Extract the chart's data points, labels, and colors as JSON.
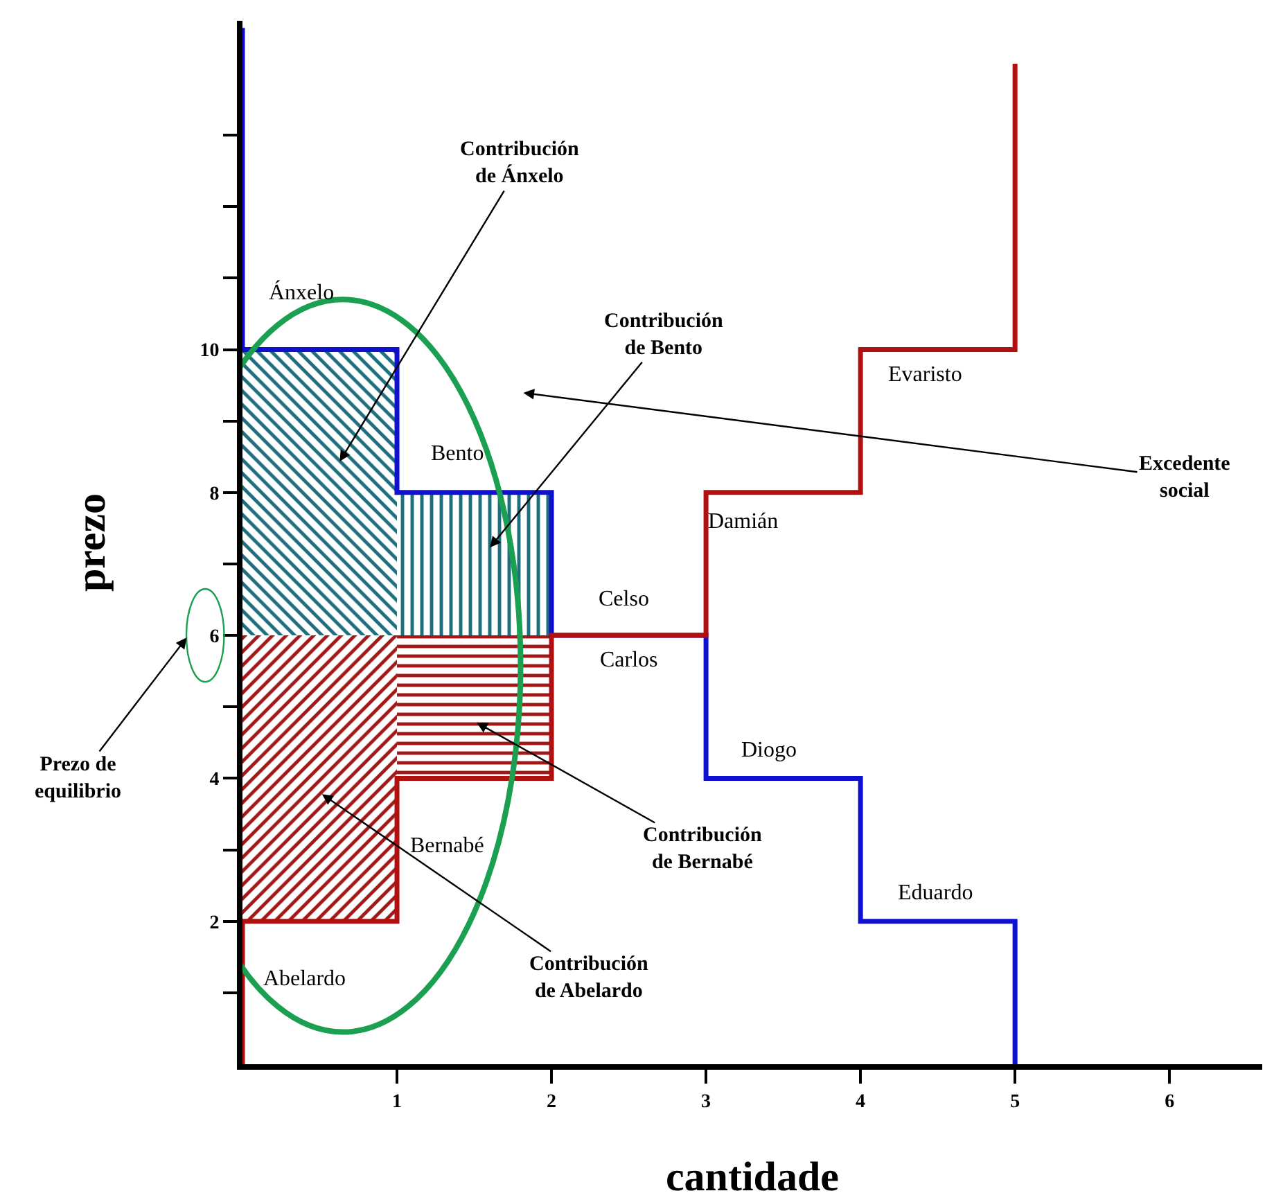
{
  "chart_data": {
    "type": "step",
    "xlabel": "cantidade",
    "ylabel": "prezo",
    "xlim": [
      0,
      6.6
    ],
    "ylim": [
      0,
      14.6
    ],
    "xticks": [
      1,
      2,
      3,
      4,
      5,
      6
    ],
    "yticks": [
      {
        "value": 1,
        "label": null
      },
      2,
      {
        "value": 3,
        "label": null
      },
      4,
      {
        "value": 5,
        "label": null
      },
      6,
      {
        "value": 7,
        "label": null
      },
      8,
      {
        "value": 9,
        "label": null
      },
      10,
      {
        "value": 11,
        "label": null
      },
      {
        "value": 12,
        "label": null
      },
      {
        "value": 13,
        "label": null
      }
    ],
    "series": [
      {
        "type": "bar",
        "color": "#1e6e7e",
        "x": [
          0.5,
          1.5
        ],
        "base": [
          6,
          6
        ],
        "values": [
          4,
          2
        ]
      },
      {
        "type": "bar",
        "color": "#a01818",
        "x": [
          0.5,
          1.5
        ],
        "base": [
          2,
          4
        ],
        "values": [
          4,
          2
        ]
      },
      {
        "color": "#1010d0",
        "x": [
          0,
          0,
          1,
          2,
          3,
          4,
          5
        ],
        "values": [
          14.5,
          10,
          8,
          6,
          4,
          2,
          0
        ]
      },
      {
        "color": "#b01010",
        "x": [
          0,
          0,
          1,
          2,
          3,
          4,
          5
        ],
        "values": [
          0,
          2,
          4,
          6,
          8,
          10,
          14
        ]
      }
    ],
    "annotations": [
      "Ánxelo",
      "Bento",
      "Celso",
      "Carlos",
      "Damián",
      "Diogo",
      "Evaristo",
      "Eduardo",
      "Bernabé",
      "Abelardo",
      "Contribución de Ánxelo",
      "Contribución de Bento",
      "Contribución de Bernabé",
      "Contribución de Abelardo",
      "Prezo de equilibrio",
      "Excedente social"
    ]
  }
}
